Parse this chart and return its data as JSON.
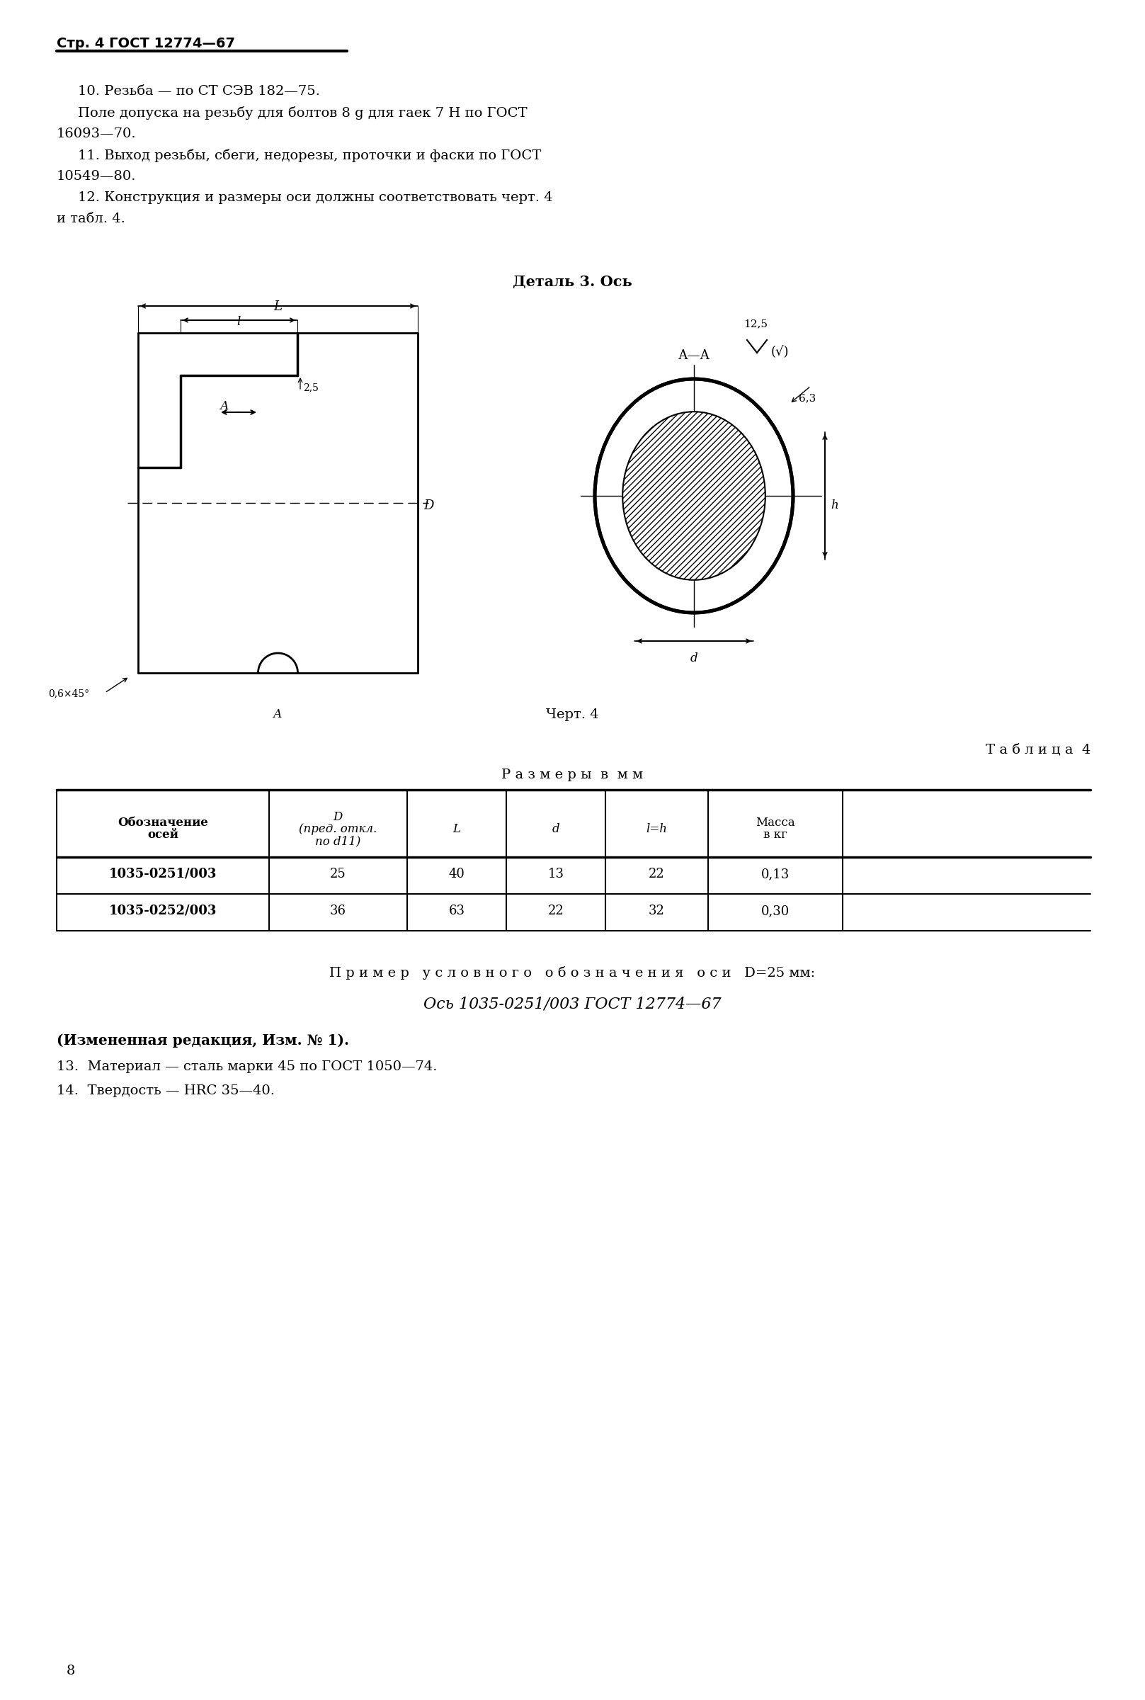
{
  "page_header": "Стр. 4 ГОСТ 12774—67",
  "bg_color": "#ffffff",
  "text_color": "#000000",
  "para10_line1": "10. Резьба — по СТ СЭВ 182—75.",
  "para10_line2": "Поле допуска на резьбу для болтов 8 g для гаек 7 H по ГОСТ",
  "para10_line3": "16093—70.",
  "para11_line1": "11. Выход резьбы, сбеги, недорезы, проточки и фаски по ГОСТ",
  "para11_line2": "10549—80.",
  "para12_line1": "12. Конструкция и размеры оси должны соответствовать черт. 4",
  "para12_line2": "и табл. 4.",
  "detail_title": "Деталь 3. Ось",
  "chert_label": "Черт. 4",
  "table_title": "Т а б л и ц а  4",
  "table_subtitle": "Р а з м е р ы  в  м м",
  "col_headers": [
    "Обозначение\nосей",
    "D\n(пред. откл.\nпо d11)",
    "L",
    "d",
    "l=h",
    "Масса\nв кг"
  ],
  "table_data": [
    [
      "1035-0251/003",
      "25",
      "40",
      "13",
      "22",
      "0,13"
    ],
    [
      "1035-0252/003",
      "36",
      "63",
      "22",
      "32",
      "0,30"
    ]
  ],
  "example_line1": "П р и м е р   у с л о в н о г о   о б о з н а ч е н и я   о с и   D=25 мм:",
  "example_line2": "Ось 1035-0251/003 ГОСТ 12774—67",
  "note_bold": "(Измененная редакция, Изм. № 1).",
  "para13": "13.  Материал — сталь марки 45 по ГОСТ 1050—74.",
  "para14": "14.  Твердость — НRC 35—40.",
  "page_number": "8"
}
